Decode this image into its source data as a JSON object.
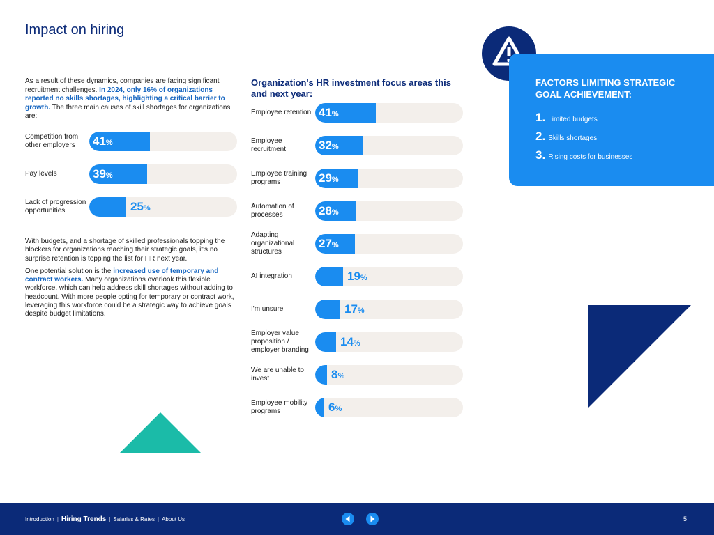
{
  "page": {
    "title": "Impact on hiring"
  },
  "intro": {
    "part1": "As a result of these dynamics, companies are facing significant recruitment challenges. ",
    "highlight": "In 2024, only 16% of organizations reported no skills shortages, highlighting a critical barrier to growth.",
    "part2": " The three main causes of skill shortages for organizations are:"
  },
  "causes": [
    {
      "label": "Competition from other employers",
      "value": 41,
      "value_text": "41",
      "suffix": "%"
    },
    {
      "label": "Pay levels",
      "value": 39,
      "value_text": "39",
      "suffix": "%"
    },
    {
      "label": "Lack of progression opportunities",
      "value": 25,
      "value_text": "25",
      "suffix": "%"
    }
  ],
  "body2": {
    "p1": "With budgets, and a shortage of skilled professionals topping the blockers for organizations reaching their strategic goals, it's no surprise retention is topping the list for HR next year.",
    "p2_part1": "One potential solution is the ",
    "p2_highlight": "increased use of temporary and contract workers.",
    "p2_part2": " Many organizations overlook this flexible workforce, which can help address skill shortages without adding to headcount. With more people opting for temporary or contract work, leveraging this workforce could be a strategic way to achieve goals despite budget limitations."
  },
  "chart_data": [
    {
      "type": "bar",
      "orientation": "horizontal",
      "title": "",
      "categories": [
        "Competition from other employers",
        "Pay levels",
        "Lack of progression opportunities"
      ],
      "values": [
        41,
        39,
        25
      ],
      "unit": "%",
      "xlim": [
        0,
        100
      ]
    },
    {
      "type": "bar",
      "orientation": "horizontal",
      "title": "Organization's HR investment focus areas this and next year:",
      "categories": [
        "Employee retention",
        "Employee recruitment",
        "Employee training programs",
        "Automation of processes",
        "Adapting organizational structures",
        "AI integration",
        "I'm unsure",
        "Employer value proposition / employer branding",
        "We are unable to invest",
        "Employee mobility programs"
      ],
      "values": [
        41,
        32,
        29,
        28,
        27,
        19,
        17,
        14,
        8,
        6
      ],
      "unit": "%",
      "xlim": [
        0,
        100
      ]
    }
  ],
  "hr_chart": {
    "title": "Organization's HR investment focus areas this and next year:",
    "items": [
      {
        "label": "Employee retention",
        "value": 41,
        "value_text": "41",
        "suffix": "%"
      },
      {
        "label": "Employee recruitment",
        "value": 32,
        "value_text": "32",
        "suffix": "%"
      },
      {
        "label": "Employee training programs",
        "value": 29,
        "value_text": "29",
        "suffix": "%"
      },
      {
        "label": "Automation of processes",
        "value": 28,
        "value_text": "28",
        "suffix": "%"
      },
      {
        "label": "Adapting organizational structures",
        "value": 27,
        "value_text": "27",
        "suffix": "%"
      },
      {
        "label": "AI integration",
        "value": 19,
        "value_text": "19",
        "suffix": "%"
      },
      {
        "label": "I'm unsure",
        "value": 17,
        "value_text": "17",
        "suffix": "%"
      },
      {
        "label": "Employer value proposition / employer branding",
        "value": 14,
        "value_text": "14",
        "suffix": "%"
      },
      {
        "label": "We are unable to invest",
        "value": 8,
        "value_text": "8",
        "suffix": "%"
      },
      {
        "label": "Employee mobility programs",
        "value": 6,
        "value_text": "6",
        "suffix": "%"
      }
    ]
  },
  "factors": {
    "title": "FACTORS LIMITING STRATEGIC GOAL ACHIEVEMENT:",
    "icon": "warning-icon",
    "items": [
      {
        "num": "1.",
        "text": "Limited budgets"
      },
      {
        "num": "2.",
        "text": "Skills shortages"
      },
      {
        "num": "3.",
        "text": "Rising costs for businesses"
      }
    ]
  },
  "footer": {
    "nav": [
      "Introduction",
      "Hiring Trends",
      "Salaries & Rates",
      "About Us"
    ],
    "separator": "|",
    "page_number": "5",
    "prev_icon": "arrow-left-icon",
    "next_icon": "arrow-right-icon"
  },
  "colors": {
    "navy": "#0b2a78",
    "blue": "#1a8cf0",
    "teal": "#1bbba8",
    "track": "#f3efeb"
  }
}
